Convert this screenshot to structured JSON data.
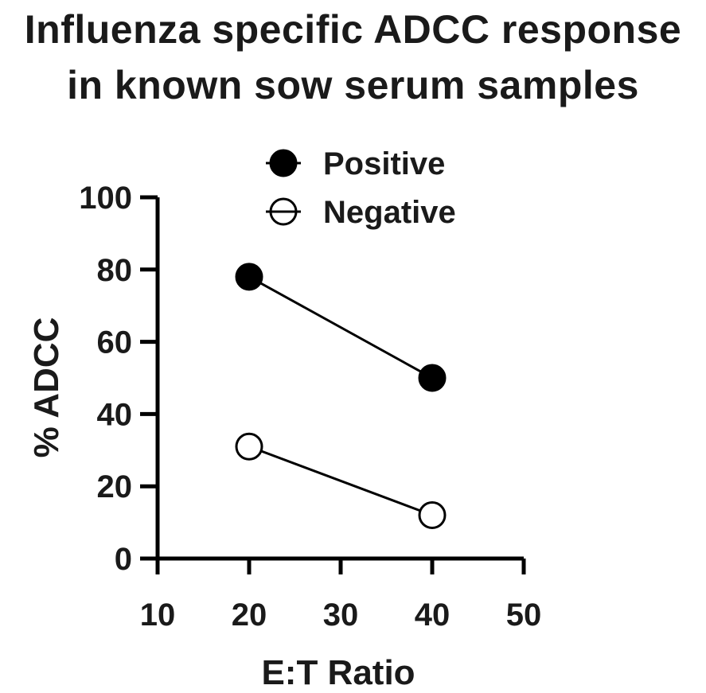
{
  "chart_data": {
    "type": "line",
    "title_lines": [
      "Influenza specific ADCC response",
      "in known sow serum samples"
    ],
    "xlabel": "E:T Ratio",
    "ylabel": "% ADCC",
    "xlim": [
      10,
      50
    ],
    "ylim": [
      0,
      100
    ],
    "xticks": [
      10,
      20,
      30,
      40,
      50
    ],
    "yticks": [
      0,
      20,
      40,
      60,
      80,
      100
    ],
    "grid": false,
    "legend_placement": "top-right",
    "series": [
      {
        "name": "Positive",
        "marker": "filled-circle",
        "color": "#000000",
        "x": [
          20,
          40
        ],
        "y": [
          78,
          50
        ]
      },
      {
        "name": "Negative",
        "marker": "open-circle",
        "color": "#000000",
        "x": [
          20,
          40
        ],
        "y": [
          31,
          12
        ]
      }
    ]
  }
}
